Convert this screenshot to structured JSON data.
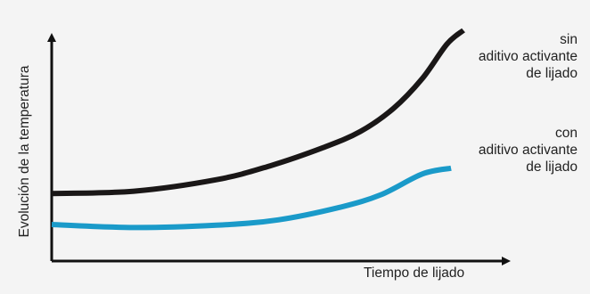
{
  "chart_data": {
    "type": "line",
    "title": "",
    "xlabel": "Tiempo de lijado",
    "ylabel": "Evolución de la temperatura",
    "xlim": [
      0,
      10
    ],
    "ylim": [
      0,
      10
    ],
    "grid": false,
    "axis_ticks": false,
    "series": [
      {
        "name": "sin aditivo activante de lijado",
        "label_lines": [
          "sin",
          "aditivo activante",
          "de lijado"
        ],
        "color": "#1a1717",
        "x": [
          0,
          2,
          4,
          5.3,
          6.6,
          7.5,
          8.3,
          9.0,
          9.6,
          10.0
        ],
        "y": [
          2.9,
          3.0,
          3.5,
          4.1,
          4.9,
          5.6,
          6.6,
          7.9,
          9.4,
          10.0
        ]
      },
      {
        "name": "con aditivo activante de lijado",
        "label_lines": [
          "con",
          "aditivo activante",
          "de lijado"
        ],
        "color": "#1a9ac9",
        "x": [
          0,
          2,
          4,
          5.5,
          7,
          8,
          9,
          9.7
        ],
        "y": [
          1.55,
          1.42,
          1.52,
          1.75,
          2.3,
          2.85,
          3.75,
          4.0
        ]
      }
    ]
  }
}
